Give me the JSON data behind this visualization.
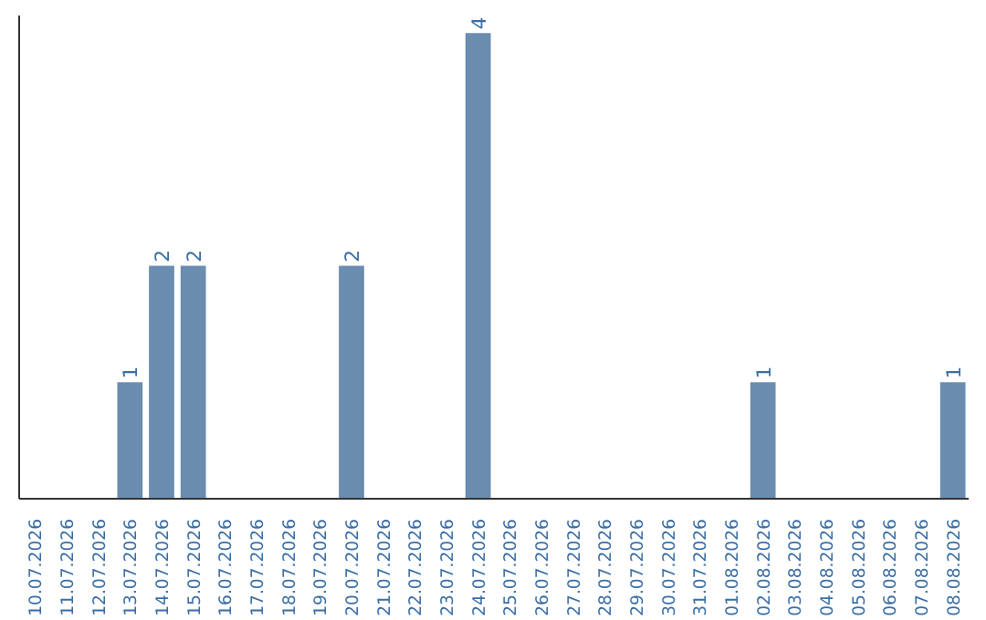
{
  "chart_data": {
    "type": "bar",
    "categories": [
      "10.07.2026",
      "11.07.2026",
      "12.07.2026",
      "13.07.2026",
      "14.07.2026",
      "15.07.2026",
      "16.07.2026",
      "17.07.2026",
      "18.07.2026",
      "19.07.2026",
      "20.07.2026",
      "21.07.2026",
      "22.07.2026",
      "23.07.2026",
      "24.07.2026",
      "25.07.2026",
      "26.07.2026",
      "27.07.2026",
      "28.07.2026",
      "29.07.2026",
      "30.07.2026",
      "31.07.2026",
      "01.08.2026",
      "02.08.2026",
      "03.08.2026",
      "04.08.2026",
      "05.08.2026",
      "06.08.2026",
      "07.08.2026",
      "08.08.2026"
    ],
    "values": [
      0,
      0,
      0,
      1,
      2,
      2,
      0,
      0,
      0,
      0,
      2,
      0,
      0,
      0,
      4,
      0,
      0,
      0,
      0,
      0,
      0,
      0,
      0,
      1,
      0,
      0,
      0,
      0,
      0,
      1
    ],
    "value_labels": [
      null,
      null,
      null,
      "1",
      "2",
      "2",
      null,
      null,
      null,
      null,
      "2",
      null,
      null,
      null,
      "4",
      null,
      null,
      null,
      null,
      null,
      null,
      null,
      null,
      "1",
      null,
      null,
      null,
      null,
      null,
      "1"
    ],
    "color": "#6a8caf",
    "ylim": [
      0,
      4.15
    ],
    "tick_labels": "x",
    "grid": false
  }
}
